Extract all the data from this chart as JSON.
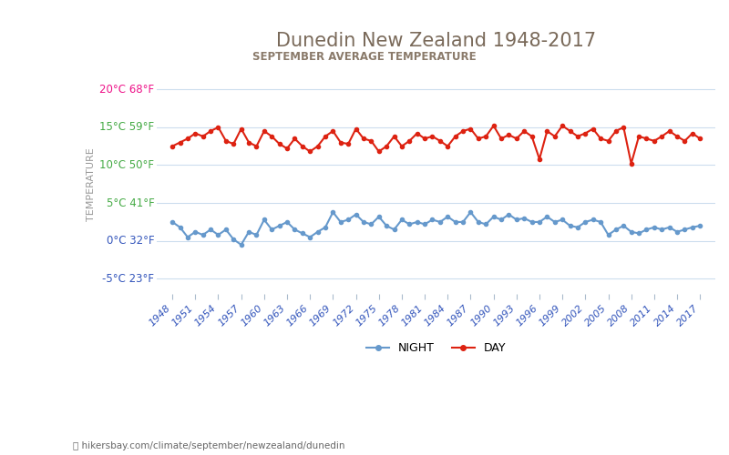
{
  "title": "Dunedin New Zealand 1948-2017",
  "subtitle": "SEPTEMBER AVERAGE TEMPERATURE",
  "title_color": "#7a6a5a",
  "subtitle_color": "#8a7a6a",
  "ylabel": "TEMPERATURE",
  "ylim": [
    -7,
    22
  ],
  "yticks_c": [
    -5,
    0,
    5,
    10,
    15,
    20
  ],
  "yticks_f": [
    23,
    32,
    41,
    50,
    59,
    68
  ],
  "ytick_colors": [
    "#3355bb",
    "#3355bb",
    "#44aa44",
    "#44aa44",
    "#44aa44",
    "#ee1188"
  ],
  "years": [
    1948,
    1949,
    1950,
    1951,
    1952,
    1953,
    1954,
    1955,
    1956,
    1957,
    1958,
    1959,
    1960,
    1961,
    1962,
    1963,
    1964,
    1965,
    1966,
    1967,
    1968,
    1969,
    1970,
    1971,
    1972,
    1973,
    1974,
    1975,
    1976,
    1977,
    1978,
    1979,
    1980,
    1981,
    1982,
    1983,
    1984,
    1985,
    1986,
    1987,
    1988,
    1989,
    1990,
    1991,
    1992,
    1993,
    1994,
    1995,
    1996,
    1997,
    1998,
    1999,
    2000,
    2001,
    2002,
    2003,
    2004,
    2005,
    2006,
    2007,
    2008,
    2009,
    2010,
    2011,
    2012,
    2013,
    2014,
    2015,
    2016,
    2017
  ],
  "day_temps": [
    12.5,
    13.0,
    13.5,
    14.2,
    13.8,
    14.5,
    15.0,
    13.2,
    12.8,
    14.8,
    13.0,
    12.5,
    14.5,
    13.8,
    12.8,
    12.2,
    13.5,
    12.5,
    11.8,
    12.5,
    13.8,
    14.5,
    13.0,
    12.8,
    14.8,
    13.5,
    13.2,
    11.8,
    12.5,
    13.8,
    12.5,
    13.2,
    14.2,
    13.5,
    13.8,
    13.2,
    12.5,
    13.8,
    14.5,
    14.8,
    13.5,
    13.8,
    15.2,
    13.5,
    14.0,
    13.5,
    14.5,
    13.8,
    10.8,
    14.5,
    13.8,
    15.2,
    14.5,
    13.8,
    14.2,
    14.8,
    13.5,
    13.2,
    14.5,
    15.0,
    10.2,
    13.8,
    13.5,
    13.2,
    13.8,
    14.5,
    13.8,
    13.2,
    14.2,
    13.5
  ],
  "night_temps": [
    2.5,
    1.8,
    0.5,
    1.2,
    0.8,
    1.5,
    0.8,
    1.5,
    0.2,
    -0.5,
    1.2,
    0.8,
    2.8,
    1.5,
    2.0,
    2.5,
    1.5,
    1.0,
    0.5,
    1.2,
    1.8,
    3.8,
    2.5,
    2.8,
    3.5,
    2.5,
    2.2,
    3.2,
    2.0,
    1.5,
    2.8,
    2.2,
    2.5,
    2.2,
    2.8,
    2.5,
    3.2,
    2.5,
    2.5,
    3.8,
    2.5,
    2.2,
    3.2,
    2.8,
    3.5,
    2.8,
    3.0,
    2.5,
    2.5,
    3.2,
    2.5,
    2.8,
    2.0,
    1.8,
    2.5,
    2.8,
    2.5,
    0.8,
    1.5,
    2.0,
    1.2,
    1.0,
    1.5,
    1.8,
    1.5,
    1.8,
    1.2,
    1.5,
    1.8,
    2.0
  ],
  "day_color": "#dd2211",
  "night_color": "#6699cc",
  "marker_size": 3,
  "line_width": 1.5,
  "background_color": "#ffffff",
  "grid_color": "#ccddee",
  "xtick_color": "#3355bb",
  "footer_text": "hikersbay.com/climate/september/newzealand/dunedin",
  "legend_day": "DAY",
  "legend_night": "NIGHT"
}
